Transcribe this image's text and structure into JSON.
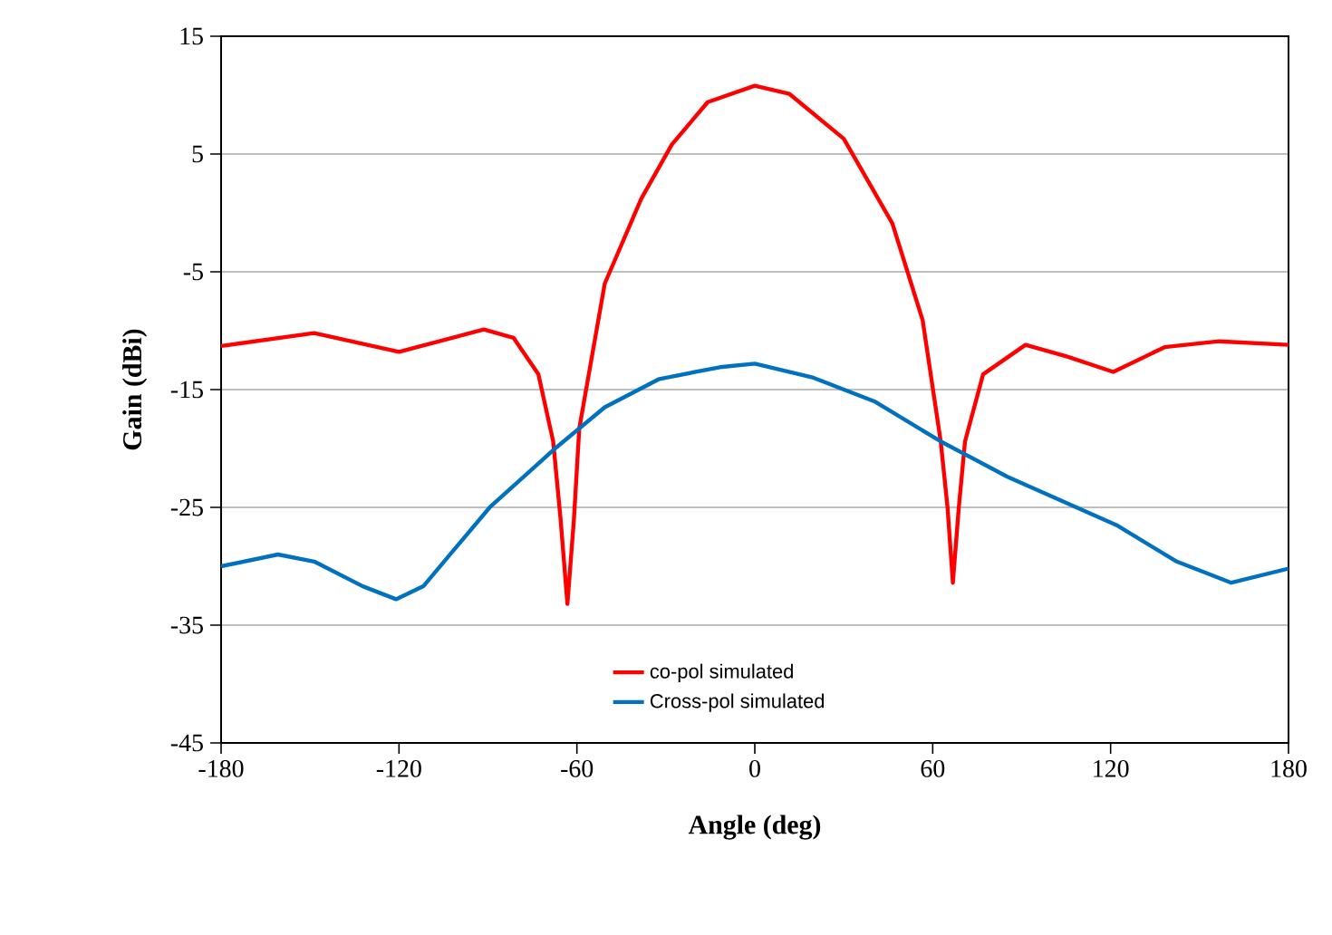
{
  "chart_data": {
    "type": "line",
    "xlabel": "Angle (deg)",
    "ylabel": "Gain (dBi)",
    "xlim": [
      -180,
      180
    ],
    "ylim": [
      -45,
      15
    ],
    "xticks": [
      -180,
      -120,
      -60,
      0,
      60,
      120,
      180
    ],
    "yticks": [
      -45,
      -35,
      -25,
      -15,
      -5,
      5,
      15
    ],
    "grid": "y",
    "legend": "bottom",
    "marker": "none",
    "line_style": "solid",
    "series": [
      {
        "name": "co-pol simulated",
        "color": "#ff0000",
        "x": [
          -180,
          -148.6,
          -120,
          -91.4,
          -81.4,
          -73,
          -68,
          -65.5,
          -63.2,
          -61,
          -59.2,
          -50.6,
          -38.3,
          -28,
          -15.9,
          0,
          11.7,
          30,
          46.4,
          56.6,
          62.7,
          65,
          66.8,
          68.8,
          70.9,
          77,
          91.3,
          105.4,
          120.9,
          138.2,
          156.6,
          180
        ],
        "values": [
          -11.3,
          -10.2,
          -11.8,
          -9.9,
          -10.6,
          -13.7,
          -19.4,
          -26,
          -33.2,
          -26,
          -18.3,
          -6.0,
          1.2,
          5.8,
          9.4,
          10.8,
          10.1,
          6.3,
          -0.9,
          -9.1,
          -19.4,
          -25,
          -31.4,
          -25,
          -19.4,
          -13.7,
          -11.2,
          -12.2,
          -13.5,
          -11.4,
          -10.9,
          -11.2
        ]
      },
      {
        "name": "Cross-pol simulated",
        "color": "#0070c0",
        "x": [
          -180,
          -160.8,
          -148.6,
          -132.2,
          -121,
          -111.8,
          -89.4,
          -66.9,
          -50.6,
          -32.2,
          -11.8,
          0,
          19.8,
          40.3,
          62.7,
          85.2,
          121.9,
          142.3,
          160.7,
          180
        ],
        "values": [
          -30.0,
          -29.0,
          -29.6,
          -31.7,
          -32.8,
          -31.7,
          -25,
          -19.9,
          -16.5,
          -14.1,
          -13.1,
          -12.8,
          -14.0,
          -16.0,
          -19.4,
          -22.4,
          -26.5,
          -29.6,
          -31.4,
          -30.2
        ]
      }
    ]
  }
}
